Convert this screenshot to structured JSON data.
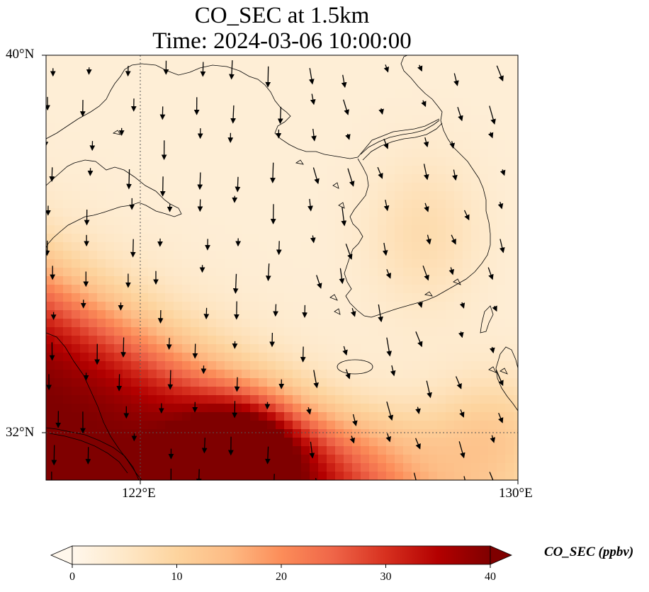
{
  "title_line1": "CO_SEC at 1.5km",
  "title_line2": "Time: 2024-03-06 10:00:00",
  "map": {
    "lon_range": [
      118.5,
      130.0
    ],
    "lat_range": [
      31.0,
      40.0
    ],
    "gridlines": {
      "lon": [
        122
      ],
      "lat": [
        32
      ],
      "style": "dotted"
    },
    "lat_labels": [
      {
        "lat": 40,
        "text": "40°N"
      },
      {
        "lat": 32,
        "text": "32°N"
      }
    ],
    "lon_labels": [
      {
        "lon": 122,
        "text": "122°E"
      },
      {
        "lon": 130,
        "text": "130°E"
      }
    ],
    "field_variable": "CO_SEC",
    "field_description": "high concentration (>=40 ppbv) over the southwest corner (East China coast), decreasing toward the northeast; background near 0-8 ppbv",
    "wind_vectors": "black arrows, predominantly northerly to northwesterly flow"
  },
  "colorbar": {
    "colormap": "OrRd",
    "min": 0,
    "max": 40,
    "extend": "both",
    "ticks": [
      {
        "value": 0,
        "text": "0"
      },
      {
        "value": 10,
        "text": "10"
      },
      {
        "value": 20,
        "text": "20"
      },
      {
        "value": 30,
        "text": "30"
      },
      {
        "value": 40,
        "text": "40"
      }
    ],
    "label": "CO_SEC (ppbv)",
    "colors": [
      "#fff7ec",
      "#fee8c8",
      "#fdd49e",
      "#fdbb84",
      "#fc8d59",
      "#ef6548",
      "#d7301f",
      "#b30000",
      "#7f0000"
    ]
  }
}
